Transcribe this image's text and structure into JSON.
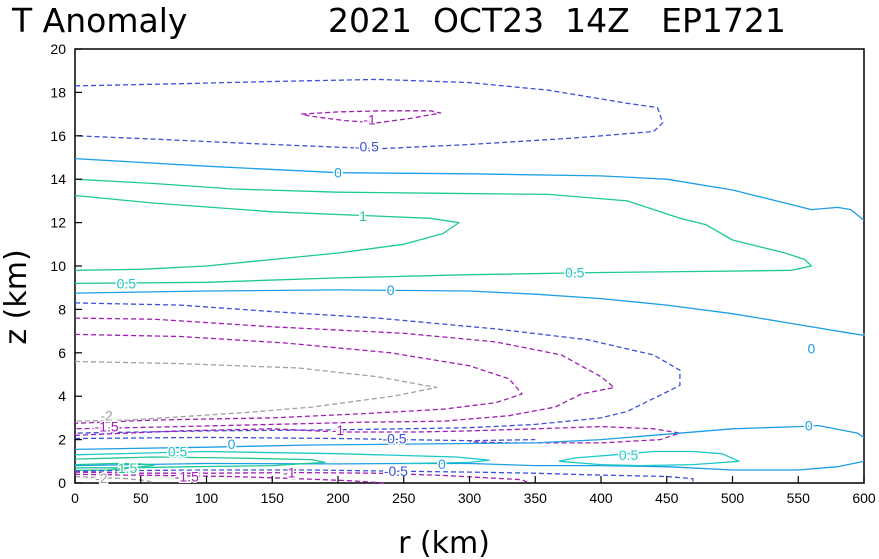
{
  "chart_data": {
    "type": "contour",
    "title_left": "T Anomaly",
    "title_right": "2021  OCT23  14Z   EP1721",
    "xlabel": "r (km)",
    "ylabel": "z (km)",
    "xlim": [
      0,
      600
    ],
    "ylim": [
      0,
      20
    ],
    "xticks": [
      0,
      50,
      100,
      150,
      200,
      250,
      300,
      350,
      400,
      450,
      500,
      550,
      600
    ],
    "yticks": [
      0,
      2,
      4,
      6,
      8,
      10,
      12,
      14,
      16,
      18,
      20
    ],
    "colors": {
      "level_0": "#1e9ee6",
      "level_0.5": "#1ec8c8",
      "level_1": "#1ec896",
      "level_1.5": "#1ec896",
      "level_-0.5": "#3c50dc",
      "level_-1": "#a01eb4",
      "level_-1.5": "#a01eb4",
      "level_-2": "#a0a0a0"
    },
    "contours": [
      {
        "level": "-0.5",
        "dashed": true,
        "points": [
          [
            0,
            18.3
          ],
          [
            80,
            18.4
          ],
          [
            150,
            18.5
          ],
          [
            230,
            18.6
          ],
          [
            300,
            18.45
          ],
          [
            360,
            18.1
          ],
          [
            420,
            17.5
          ],
          [
            443,
            17.3
          ],
          [
            447,
            16.6
          ],
          [
            440,
            16.2
          ],
          [
            380,
            15.9
          ],
          [
            300,
            15.6
          ],
          [
            230,
            15.4
          ],
          [
            150,
            15.6
          ],
          [
            60,
            15.85
          ],
          [
            0,
            16.0
          ]
        ]
      },
      {
        "level": "-1",
        "dashed": true,
        "points": [
          [
            172,
            17.0
          ],
          [
            200,
            17.1
          ],
          [
            235,
            17.15
          ],
          [
            270,
            17.15
          ],
          [
            278,
            17.05
          ],
          [
            255,
            16.8
          ],
          [
            230,
            16.6
          ],
          [
            205,
            16.7
          ],
          [
            180,
            16.9
          ],
          [
            172,
            17.0
          ]
        ]
      },
      {
        "level": "0",
        "dashed": false,
        "points": [
          [
            0,
            14.95
          ],
          [
            100,
            14.6
          ],
          [
            200,
            14.3
          ],
          [
            300,
            14.25
          ],
          [
            400,
            14.15
          ],
          [
            450,
            14.0
          ],
          [
            500,
            13.5
          ],
          [
            560,
            12.6
          ],
          [
            580,
            12.7
          ],
          [
            590,
            12.6
          ],
          [
            600,
            12.1
          ]
        ]
      },
      {
        "level": "1",
        "dashed": false,
        "points": [
          [
            0,
            14.0
          ],
          [
            60,
            13.8
          ],
          [
            120,
            13.55
          ],
          [
            200,
            13.4
          ],
          [
            280,
            13.35
          ],
          [
            360,
            13.3
          ],
          [
            420,
            13.0
          ],
          [
            460,
            12.2
          ],
          [
            480,
            11.9
          ],
          [
            500,
            11.2
          ],
          [
            540,
            10.6
          ],
          [
            555,
            10.3
          ],
          [
            560,
            10.0
          ],
          [
            545,
            9.8
          ],
          [
            480,
            9.75
          ],
          [
            400,
            9.7
          ],
          [
            300,
            9.6
          ],
          [
            200,
            9.45
          ],
          [
            100,
            9.25
          ],
          [
            0,
            9.2
          ]
        ]
      },
      {
        "level": "1",
        "dashed": false,
        "points": [
          [
            0,
            13.25
          ],
          [
            60,
            12.9
          ],
          [
            150,
            12.5
          ],
          [
            230,
            12.3
          ],
          [
            270,
            12.2
          ],
          [
            292,
            12.0
          ],
          [
            280,
            11.5
          ],
          [
            250,
            11.0
          ],
          [
            200,
            10.6
          ],
          [
            150,
            10.3
          ],
          [
            100,
            10.0
          ],
          [
            50,
            9.85
          ],
          [
            0,
            9.8
          ]
        ]
      },
      {
        "level": "0",
        "dashed": false,
        "points": [
          [
            0,
            8.75
          ],
          [
            100,
            8.85
          ],
          [
            200,
            8.9
          ],
          [
            300,
            8.85
          ],
          [
            350,
            8.7
          ],
          [
            400,
            8.5
          ],
          [
            450,
            8.2
          ],
          [
            500,
            7.8
          ],
          [
            550,
            7.3
          ],
          [
            590,
            6.9
          ],
          [
            600,
            6.8
          ],
          [
            600,
            6.9
          ]
        ]
      },
      {
        "level": "-0.5",
        "dashed": true,
        "points": [
          [
            0,
            8.3
          ],
          [
            80,
            8.2
          ],
          [
            150,
            7.9
          ],
          [
            230,
            7.6
          ],
          [
            320,
            7.1
          ],
          [
            390,
            6.6
          ],
          [
            440,
            5.9
          ],
          [
            460,
            5.2
          ],
          [
            460,
            4.5
          ],
          [
            447,
            4.1
          ],
          [
            440,
            3.9
          ],
          [
            420,
            3.3
          ],
          [
            400,
            3.0
          ],
          [
            350,
            2.7
          ],
          [
            300,
            2.55
          ],
          [
            250,
            2.5
          ],
          [
            200,
            2.45
          ],
          [
            100,
            2.4
          ],
          [
            0,
            2.3
          ]
        ]
      },
      {
        "level": "-1",
        "dashed": true,
        "points": [
          [
            0,
            7.6
          ],
          [
            60,
            7.55
          ],
          [
            150,
            7.2
          ],
          [
            250,
            6.9
          ],
          [
            320,
            6.5
          ],
          [
            370,
            5.9
          ],
          [
            400,
            4.9
          ],
          [
            410,
            4.4
          ],
          [
            385,
            4.1
          ],
          [
            365,
            3.5
          ],
          [
            330,
            3.1
          ],
          [
            280,
            2.85
          ],
          [
            220,
            2.8
          ],
          [
            150,
            2.7
          ],
          [
            80,
            2.6
          ],
          [
            0,
            2.5
          ]
        ]
      },
      {
        "level": "-1.5",
        "dashed": true,
        "points": [
          [
            0,
            6.85
          ],
          [
            80,
            6.75
          ],
          [
            160,
            6.45
          ],
          [
            240,
            6.0
          ],
          [
            300,
            5.4
          ],
          [
            330,
            4.8
          ],
          [
            340,
            4.1
          ],
          [
            320,
            3.7
          ],
          [
            280,
            3.4
          ],
          [
            220,
            3.2
          ],
          [
            150,
            3.0
          ],
          [
            100,
            2.95
          ],
          [
            60,
            2.9
          ],
          [
            0,
            2.75
          ]
        ]
      },
      {
        "level": "-2",
        "dashed": true,
        "points": [
          [
            0,
            5.6
          ],
          [
            80,
            5.5
          ],
          [
            170,
            5.3
          ],
          [
            230,
            4.9
          ],
          [
            275,
            4.4
          ],
          [
            242,
            4.0
          ],
          [
            180,
            3.5
          ],
          [
            130,
            3.25
          ],
          [
            80,
            3.05
          ],
          [
            40,
            2.9
          ],
          [
            0,
            2.85
          ]
        ]
      },
      {
        "level": "-1.5",
        "dashed": true,
        "points": [
          [
            0,
            2.2
          ],
          [
            80,
            2.4
          ],
          [
            150,
            2.5
          ],
          [
            200,
            2.35
          ],
          [
            260,
            2.35
          ],
          [
            300,
            2.4
          ],
          [
            350,
            2.5
          ],
          [
            400,
            2.6
          ],
          [
            440,
            2.5
          ],
          [
            460,
            2.3
          ],
          [
            445,
            2.0
          ],
          [
            400,
            1.85
          ],
          [
            330,
            1.85
          ],
          [
            300,
            1.9
          ]
        ]
      },
      {
        "level": "-0.5",
        "dashed": true,
        "points": [
          [
            0,
            2.05
          ],
          [
            100,
            2.1
          ],
          [
            200,
            2.05
          ],
          [
            250,
            2.0
          ],
          [
            300,
            1.95
          ],
          [
            350,
            2.0
          ]
        ]
      },
      {
        "level": "0",
        "dashed": false,
        "points": [
          [
            0,
            1.55
          ],
          [
            100,
            1.65
          ],
          [
            180,
            1.75
          ],
          [
            270,
            1.8
          ],
          [
            350,
            1.85
          ],
          [
            400,
            2.0
          ],
          [
            450,
            2.25
          ],
          [
            500,
            2.5
          ],
          [
            550,
            2.6
          ],
          [
            565,
            2.65
          ],
          [
            595,
            2.3
          ],
          [
            600,
            2.1
          ]
        ]
      },
      {
        "level": "0",
        "dashed": false,
        "points": [
          [
            0,
            0.8
          ],
          [
            100,
            0.9
          ],
          [
            200,
            0.88
          ],
          [
            250,
            0.9
          ],
          [
            300,
            0.9
          ],
          [
            350,
            0.8
          ],
          [
            400,
            0.8
          ],
          [
            450,
            0.75
          ],
          [
            500,
            0.6
          ],
          [
            550,
            0.6
          ],
          [
            580,
            0.75
          ],
          [
            600,
            1.0
          ]
        ]
      },
      {
        "level": "0.5",
        "dashed": false,
        "points": [
          [
            0,
            1.3
          ],
          [
            100,
            1.45
          ],
          [
            200,
            1.35
          ],
          [
            290,
            1.2
          ],
          [
            315,
            1.05
          ],
          [
            300,
            0.95
          ],
          [
            250,
            0.9
          ]
        ]
      },
      {
        "level": "0.5",
        "dashed": false,
        "points": [
          [
            368,
            1.0
          ],
          [
            380,
            1.15
          ],
          [
            410,
            1.3
          ],
          [
            440,
            1.45
          ],
          [
            470,
            1.45
          ],
          [
            492,
            1.35
          ],
          [
            505,
            1.0
          ],
          [
            470,
            0.85
          ],
          [
            430,
            0.8
          ],
          [
            400,
            0.85
          ],
          [
            368,
            1.0
          ]
        ]
      },
      {
        "level": "1",
        "dashed": false,
        "points": [
          [
            0,
            1.1
          ],
          [
            60,
            1.2
          ],
          [
            120,
            1.15
          ],
          [
            180,
            1.08
          ],
          [
            190,
            0.95
          ],
          [
            150,
            0.8
          ],
          [
            90,
            0.75
          ],
          [
            40,
            0.7
          ],
          [
            0,
            0.7
          ]
        ]
      },
      {
        "level": "1.5",
        "dashed": false,
        "points": [
          [
            0,
            0.85
          ],
          [
            30,
            0.9
          ],
          [
            50,
            0.88
          ],
          [
            60,
            0.82
          ],
          [
            45,
            0.7
          ],
          [
            25,
            0.6
          ],
          [
            0,
            0.58
          ]
        ]
      },
      {
        "level": "-0.5",
        "dashed": true,
        "points": [
          [
            0,
            0.55
          ],
          [
            60,
            0.58
          ],
          [
            100,
            0.6
          ],
          [
            180,
            0.6
          ],
          [
            240,
            0.55
          ],
          [
            300,
            0.5
          ],
          [
            350,
            0.45
          ],
          [
            390,
            0.38
          ],
          [
            450,
            0.3
          ],
          [
            470,
            0.2
          ],
          [
            470,
            0.0
          ]
        ]
      },
      {
        "level": "-1",
        "dashed": true,
        "points": [
          [
            0,
            0.5
          ],
          [
            50,
            0.45
          ],
          [
            100,
            0.45
          ],
          [
            170,
            0.48
          ],
          [
            230,
            0.45
          ],
          [
            280,
            0.35
          ],
          [
            310,
            0.25
          ],
          [
            340,
            0.15
          ],
          [
            345,
            0.0
          ]
        ]
      },
      {
        "level": "-1.5",
        "dashed": true,
        "points": [
          [
            0,
            0.4
          ],
          [
            60,
            0.35
          ],
          [
            120,
            0.3
          ],
          [
            170,
            0.2
          ],
          [
            210,
            0.1
          ],
          [
            235,
            0.0
          ]
        ]
      },
      {
        "level": "-2",
        "dashed": true,
        "points": [
          [
            0,
            0.3
          ],
          [
            20,
            0.25
          ],
          [
            40,
            0.2
          ],
          [
            55,
            0.1
          ],
          [
            60,
            0.0
          ]
        ]
      }
    ],
    "contour_labels": [
      {
        "text": "-1",
        "level": "-1",
        "x": 224,
        "y": 16.75
      },
      {
        "text": "-0.5",
        "level": "-0.5",
        "x": 222,
        "y": 15.5
      },
      {
        "text": "0",
        "level": "0",
        "x": 200,
        "y": 14.3
      },
      {
        "text": "1",
        "level": "1",
        "x": 219,
        "y": 12.3
      },
      {
        "text": "0.5",
        "level": "0.5",
        "x": 39,
        "y": 9.2
      },
      {
        "text": "0.5",
        "level": "0.5",
        "x": 380,
        "y": 9.7
      },
      {
        "text": "0",
        "level": "0",
        "x": 240,
        "y": 8.9
      },
      {
        "text": "0",
        "level": "0",
        "x": 560,
        "y": 6.2
      },
      {
        "text": "-1.5",
        "level": "-1.5",
        "x": 24,
        "y": 2.6
      },
      {
        "text": "-1",
        "level": "-1",
        "x": 200,
        "y": 2.45
      },
      {
        "text": "-0.5",
        "level": "-0.5",
        "x": 243,
        "y": 2.05
      },
      {
        "text": "0",
        "level": "0",
        "x": 119,
        "y": 1.8
      },
      {
        "text": "0.5",
        "level": "0.5",
        "x": 78,
        "y": 1.45
      },
      {
        "text": "0",
        "level": "0",
        "x": 558,
        "y": 2.65
      },
      {
        "text": "0.5",
        "level": "0.5",
        "x": 421,
        "y": 1.3
      },
      {
        "text": "0",
        "level": "0",
        "x": 279,
        "y": 0.87
      },
      {
        "text": "-0.5",
        "level": "-0.5",
        "x": 244,
        "y": 0.55
      },
      {
        "text": "1.5",
        "level": "1.5",
        "x": 40,
        "y": 0.7
      },
      {
        "text": "-1.5",
        "level": "-1.5",
        "x": 85,
        "y": 0.3
      },
      {
        "text": "-1",
        "level": "-1",
        "x": 163,
        "y": 0.48
      },
      {
        "text": "-2",
        "level": "-2",
        "x": 20,
        "y": 0.22
      },
      {
        "text": "-2",
        "level": "-2",
        "x": 24,
        "y": 3.1
      }
    ]
  }
}
